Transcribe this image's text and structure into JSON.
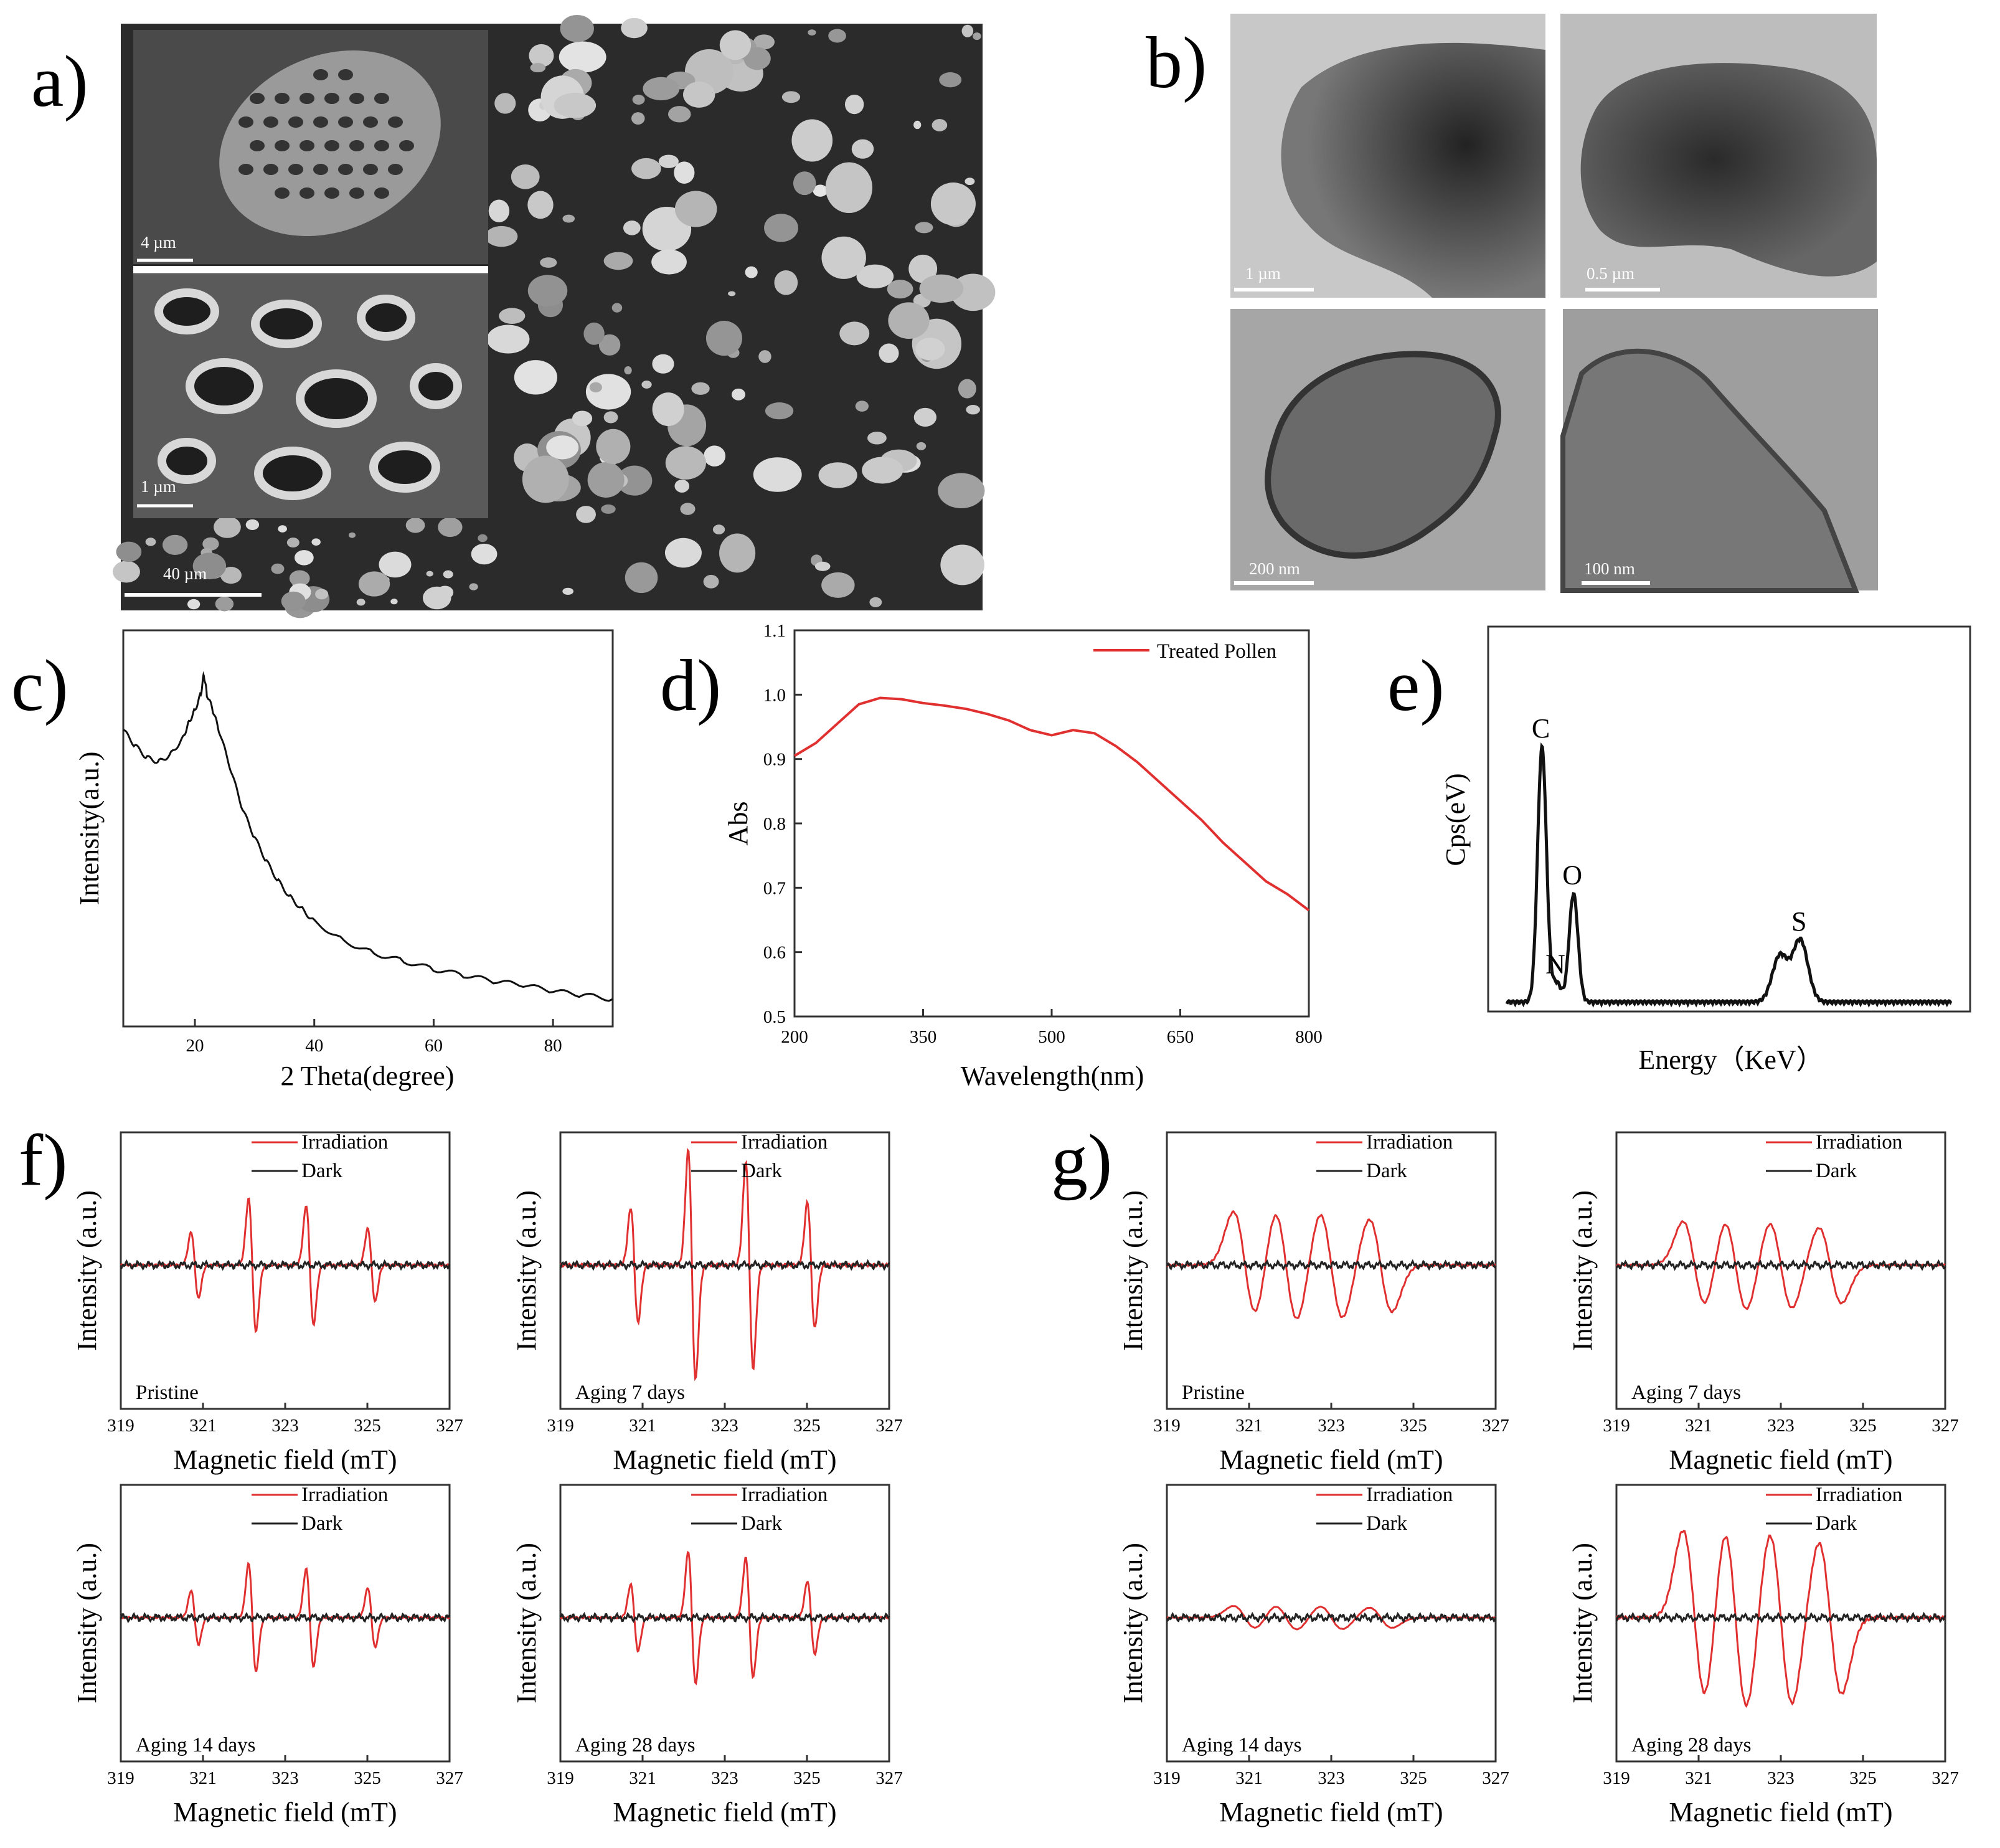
{
  "panel_labels": [
    "a)",
    "b)",
    "c)",
    "d)",
    "e)",
    "f)",
    "g)"
  ],
  "sem": {
    "scale_main": "40 µm",
    "scale_inset_top": "4 µm",
    "scale_inset_bottom": "1 µm"
  },
  "tem": {
    "scales": [
      "1 µm",
      "0.5 µm",
      "200 nm",
      "100 nm"
    ]
  },
  "chart_data": [
    {
      "id": "c",
      "type": "line",
      "xlabel": "2 Theta(degree)",
      "ylabel": "Intensity(a.u.)",
      "xlim": [
        8,
        90
      ],
      "xticks": [
        20,
        40,
        60,
        80
      ],
      "series": [
        {
          "x": [
            8,
            10,
            12,
            14,
            16,
            18,
            19,
            20,
            21,
            21.5,
            22,
            23,
            24,
            26,
            28,
            30,
            32,
            34,
            36,
            38,
            40,
            45,
            50,
            55,
            60,
            65,
            70,
            75,
            80,
            85,
            90
          ],
          "y": [
            0.7,
            0.66,
            0.63,
            0.62,
            0.64,
            0.68,
            0.72,
            0.75,
            0.79,
            0.84,
            0.79,
            0.75,
            0.7,
            0.6,
            0.5,
            0.43,
            0.37,
            0.32,
            0.28,
            0.25,
            0.22,
            0.17,
            0.14,
            0.12,
            0.1,
            0.085,
            0.07,
            0.06,
            0.045,
            0.035,
            0.025
          ]
        }
      ]
    },
    {
      "id": "d",
      "type": "line",
      "xlabel": "Wavelength(nm)",
      "ylabel": "Abs",
      "xlim": [
        200,
        800
      ],
      "ylim": [
        0.5,
        1.1
      ],
      "xticks": [
        200,
        350,
        500,
        650,
        800
      ],
      "yticks": [
        0.5,
        0.6,
        0.7,
        0.8,
        0.9,
        1.0,
        1.1
      ],
      "series": [
        {
          "name": "Treated Pollen",
          "color": "#e03030",
          "x": [
            200,
            225,
            250,
            275,
            300,
            325,
            350,
            375,
            400,
            425,
            450,
            475,
            500,
            525,
            550,
            575,
            600,
            625,
            650,
            675,
            700,
            725,
            750,
            775,
            800
          ],
          "y": [
            0.905,
            0.925,
            0.955,
            0.985,
            0.995,
            0.993,
            0.987,
            0.983,
            0.978,
            0.97,
            0.96,
            0.945,
            0.937,
            0.945,
            0.94,
            0.92,
            0.895,
            0.865,
            0.835,
            0.805,
            0.77,
            0.74,
            0.71,
            0.69,
            0.665
          ]
        }
      ]
    },
    {
      "id": "e",
      "type": "line",
      "xlabel": "Energy（KeV）",
      "ylabel": "Cps(eV)",
      "peaks": [
        {
          "label": "C",
          "x": 0.277,
          "y": 0.66
        },
        {
          "label": "N",
          "x": 0.392,
          "y": 0.05
        },
        {
          "label": "O",
          "x": 0.525,
          "y": 0.28
        },
        {
          "label": "",
          "x": 2.15,
          "y": 0.12
        },
        {
          "label": "S",
          "x": 2.31,
          "y": 0.16
        }
      ],
      "xlim": [
        0,
        3.5
      ]
    }
  ],
  "epr": {
    "xlabel": "Magnetic field (mT)",
    "ylabel": "Intensity (a.u.)",
    "xticks": [
      "319",
      "321",
      "323",
      "325",
      "327"
    ],
    "legend": [
      "Irradiation",
      "Dark"
    ],
    "colors": {
      "irradiation": "#e03030",
      "dark": "#222222"
    },
    "f_panels": [
      "Pristine",
      "Aging 7 days",
      "Aging 14 days",
      "Aging 28 days"
    ],
    "g_panels": [
      "Pristine",
      "Aging 7 days",
      "Aging 14 days",
      "Aging 28 days"
    ],
    "f_amplitudes": [
      0.55,
      0.95,
      0.45,
      0.55
    ],
    "g_amplitudes": [
      0.55,
      0.45,
      0.12,
      0.9
    ]
  }
}
